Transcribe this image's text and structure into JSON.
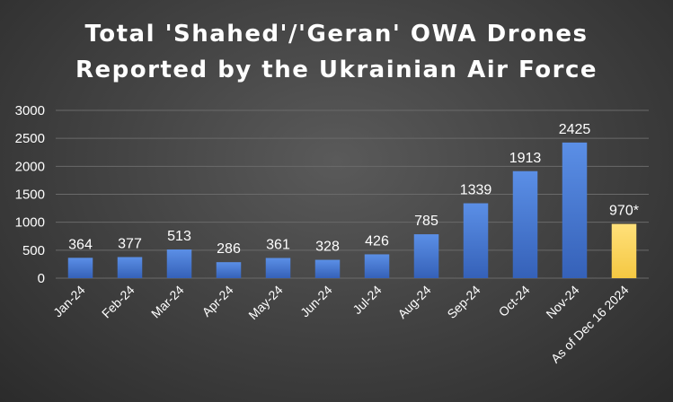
{
  "chart_data": {
    "type": "bar",
    "title_lines": [
      "Total 'Shahed'/'Geran' OWA Drones",
      "Reported by the Ukrainian Air Force"
    ],
    "categories": [
      "Jan-24",
      "Feb-24",
      "Mar-24",
      "Apr-24",
      "May-24",
      "Jun-24",
      "Jul-24",
      "Aug-24",
      "Sep-24",
      "Oct-24",
      "Nov-24",
      "As of Dec 16 2024"
    ],
    "values": [
      364,
      377,
      513,
      286,
      361,
      328,
      426,
      785,
      1339,
      1913,
      2425,
      970
    ],
    "data_labels": [
      "364",
      "377",
      "513",
      "286",
      "361",
      "328",
      "426",
      "785",
      "1339",
      "1913",
      "2425",
      "970*"
    ],
    "yticks": [
      "0",
      "500",
      "1000",
      "1500",
      "2000",
      "2500",
      "3000"
    ],
    "ylim": [
      0,
      3000
    ],
    "grid": true,
    "legend": "none",
    "colors": {
      "bar": "#4472c4",
      "highlight_bar": "#ffd966",
      "highlight_index": 11,
      "text": "#ffffff",
      "grid": "#6a6a6a"
    }
  }
}
